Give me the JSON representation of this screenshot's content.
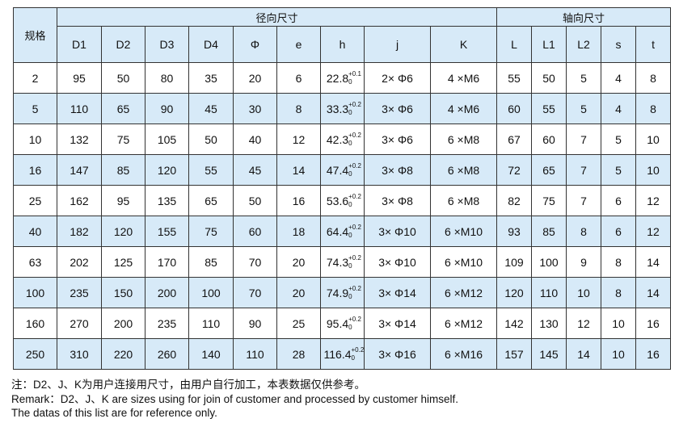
{
  "header": {
    "spec": "规格",
    "radial": "径向尺寸",
    "axial": "轴向尺寸",
    "columns": [
      "D1",
      "D2",
      "D3",
      "D4",
      "Φ",
      "e",
      "h",
      "j",
      "K",
      "L",
      "L1",
      "L2",
      "s",
      "t"
    ]
  },
  "rows": [
    [
      "2",
      "95",
      "50",
      "80",
      "35",
      "20",
      "6",
      "22.8",
      "+0.1",
      "0",
      "2× Φ6",
      "4 ×M6",
      "55",
      "50",
      "5",
      "4",
      "8"
    ],
    [
      "5",
      "110",
      "65",
      "90",
      "45",
      "30",
      "8",
      "33.3",
      "+0.2",
      "0",
      "3× Φ6",
      "4 ×M6",
      "60",
      "55",
      "5",
      "4",
      "8"
    ],
    [
      "10",
      "132",
      "75",
      "105",
      "50",
      "40",
      "12",
      "42.3",
      "+0.2",
      "0",
      "3× Φ6",
      "6 ×M8",
      "67",
      "60",
      "7",
      "5",
      "10"
    ],
    [
      "16",
      "147",
      "85",
      "120",
      "55",
      "45",
      "14",
      "47.4",
      "+0.2",
      "0",
      "3× Φ8",
      "6 ×M8",
      "72",
      "65",
      "7",
      "5",
      "10"
    ],
    [
      "25",
      "162",
      "95",
      "135",
      "65",
      "50",
      "16",
      "53.6",
      "+0.2",
      "0",
      "3× Φ8",
      "6 ×M8",
      "82",
      "75",
      "7",
      "6",
      "12"
    ],
    [
      "40",
      "182",
      "120",
      "155",
      "75",
      "60",
      "18",
      "64.4",
      "+0.2",
      "0",
      "3× Φ10",
      "6 ×M10",
      "93",
      "85",
      "8",
      "6",
      "12"
    ],
    [
      "63",
      "202",
      "125",
      "170",
      "85",
      "70",
      "20",
      "74.3",
      "+0.2",
      "0",
      "3× Φ10",
      "6 ×M10",
      "109",
      "100",
      "9",
      "8",
      "14"
    ],
    [
      "100",
      "235",
      "150",
      "200",
      "100",
      "70",
      "20",
      "74.9",
      "+0.2",
      "0",
      "3× Φ14",
      "6 ×M12",
      "120",
      "110",
      "10",
      "8",
      "14"
    ],
    [
      "160",
      "270",
      "200",
      "235",
      "110",
      "90",
      "25",
      "95.4",
      "+0.2",
      "0",
      "3× Φ14",
      "6 ×M12",
      "142",
      "130",
      "12",
      "10",
      "16"
    ],
    [
      "250",
      "310",
      "220",
      "260",
      "140",
      "110",
      "28",
      "116.4",
      "+0.2",
      "0",
      "3× Φ16",
      "6 ×M16",
      "157",
      "145",
      "14",
      "10",
      "16"
    ]
  ],
  "notes": [
    "注：D2、J、K为用户连接用尺寸，由用户自行加工，本表数据仅供参考。",
    "Remark：D2、J、K  are sizes using for join of customer and processed by customer himself.",
    "The datas of this list are for reference only."
  ]
}
